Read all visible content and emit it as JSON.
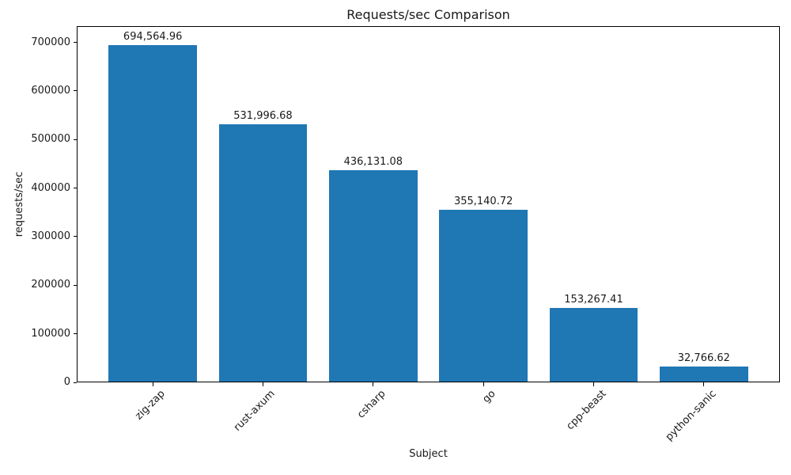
{
  "chart_data": {
    "type": "bar",
    "title": "Requests/sec Comparison",
    "xlabel": "Subject",
    "ylabel": "requests/sec",
    "categories": [
      "zig-zap",
      "rust-axum",
      "csharp",
      "go",
      "cpp-beast",
      "python-sanic"
    ],
    "values": [
      694564.96,
      531996.68,
      436131.08,
      355140.72,
      153267.41,
      32766.62
    ],
    "value_labels": [
      "694,564.96",
      "531,996.68",
      "436,131.08",
      "355,140.72",
      "153,267.41",
      "32,766.62"
    ],
    "bar_color": "#1f77b4",
    "ylim": [
      0,
      733600
    ],
    "ytick_values": [
      0,
      100000,
      200000,
      300000,
      400000,
      500000,
      600000,
      700000
    ],
    "ytick_labels": [
      "0",
      "100000",
      "200000",
      "300000",
      "400000",
      "500000",
      "600000",
      "700000"
    ],
    "grid": false,
    "legend": "none",
    "xtick_rotation_deg": 45
  }
}
